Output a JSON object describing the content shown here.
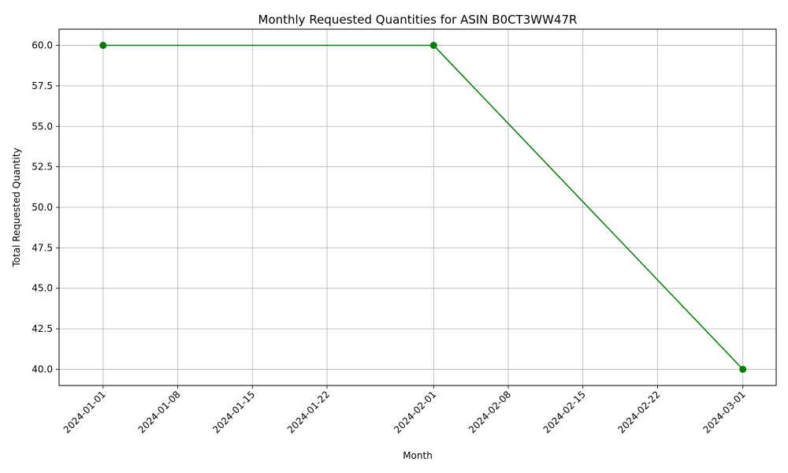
{
  "chart_data": {
    "type": "line",
    "title": "Monthly Requested Quantities for ASIN B0CT3WW47R",
    "xlabel": "Month",
    "ylabel": "Total Requested Quantity",
    "x": [
      "2024-01-01",
      "2024-02-01",
      "2024-03-01"
    ],
    "series": [
      {
        "values": [
          60,
          60,
          40
        ],
        "color": "#008000"
      }
    ],
    "x_ticks": [
      "2024-01-01",
      "2024-01-08",
      "2024-01-15",
      "2024-01-22",
      "2024-02-01",
      "2024-02-08",
      "2024-02-15",
      "2024-02-22",
      "2024-03-01"
    ],
    "y_ticks": [
      "40.0",
      "42.5",
      "45.0",
      "47.5",
      "50.0",
      "52.5",
      "55.0",
      "57.5",
      "60.0"
    ],
    "ylim": [
      39,
      61
    ],
    "xlim": [
      "2023-12-27T21:00:00",
      "2024-03-04T03:00:00"
    ],
    "grid": true,
    "marker": "circle"
  }
}
